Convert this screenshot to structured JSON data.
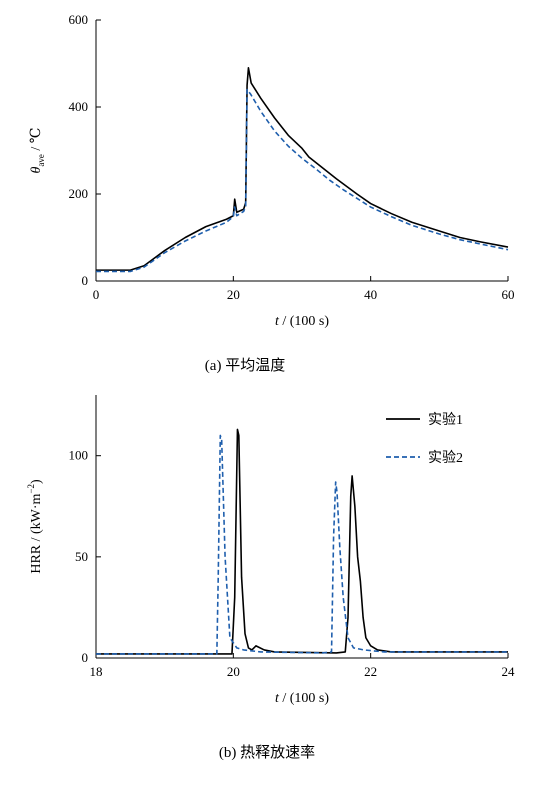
{
  "chart_data": [
    {
      "type": "line",
      "caption": "(a)  平均温度",
      "xlabel": {
        "var": "t",
        "rest": " / (100 s)"
      },
      "ylabel": {
        "var": "θ",
        "sub": "ave",
        "rest": " / ℃"
      },
      "xlim": [
        0,
        60
      ],
      "ylim": [
        0,
        600
      ],
      "xticks": [
        0,
        20,
        40,
        60
      ],
      "yticks": [
        0,
        200,
        400,
        600
      ],
      "grid": false,
      "series": [
        {
          "style": "solid",
          "color": "#000000",
          "points": [
            [
              0,
              25
            ],
            [
              5,
              25
            ],
            [
              7,
              35
            ],
            [
              10,
              70
            ],
            [
              13,
              100
            ],
            [
              16,
              125
            ],
            [
              19,
              142
            ],
            [
              20,
              150
            ],
            [
              20.2,
              188
            ],
            [
              20.5,
              158
            ],
            [
              21.5,
              165
            ],
            [
              21.8,
              180
            ],
            [
              22,
              450
            ],
            [
              22.2,
              490
            ],
            [
              22.6,
              455
            ],
            [
              24,
              420
            ],
            [
              26,
              375
            ],
            [
              28,
              335
            ],
            [
              30,
              305
            ],
            [
              31,
              285
            ],
            [
              33,
              260
            ],
            [
              35,
              235
            ],
            [
              38,
              200
            ],
            [
              40,
              178
            ],
            [
              43,
              155
            ],
            [
              46,
              135
            ],
            [
              50,
              115
            ],
            [
              53,
              100
            ],
            [
              56,
              90
            ],
            [
              60,
              78
            ]
          ]
        },
        {
          "style": "dashed",
          "color": "#1f5fad",
          "points": [
            [
              0,
              22
            ],
            [
              5,
              22
            ],
            [
              7,
              32
            ],
            [
              10,
              65
            ],
            [
              13,
              92
            ],
            [
              16,
              115
            ],
            [
              19,
              135
            ],
            [
              20,
              148
            ],
            [
              20.2,
              170
            ],
            [
              20.5,
              150
            ],
            [
              21.5,
              160
            ],
            [
              21.8,
              172
            ],
            [
              22,
              440
            ],
            [
              22.5,
              430
            ],
            [
              24,
              390
            ],
            [
              26,
              345
            ],
            [
              28,
              310
            ],
            [
              30,
              282
            ],
            [
              32,
              258
            ],
            [
              34,
              232
            ],
            [
              36,
              210
            ],
            [
              38,
              190
            ],
            [
              40,
              170
            ],
            [
              43,
              148
            ],
            [
              46,
              128
            ],
            [
              50,
              108
            ],
            [
              53,
              95
            ],
            [
              56,
              85
            ],
            [
              60,
              72
            ]
          ]
        }
      ]
    },
    {
      "type": "line",
      "caption": "(b)  热释放速率",
      "xlabel": {
        "var": "t",
        "rest": " / (100 s)"
      },
      "ylabel": {
        "text": "HRR / (kW·m",
        "sup": "−2",
        "close": ")"
      },
      "xlim": [
        18,
        24
      ],
      "ylim": [
        0,
        130
      ],
      "xticks": [
        18,
        20,
        22,
        24
      ],
      "yticks": [
        0,
        50,
        100
      ],
      "grid": false,
      "legend": {
        "position": "top-right"
      },
      "series": [
        {
          "name": "实验1",
          "style": "solid",
          "color": "#000000",
          "points": [
            [
              18,
              2
            ],
            [
              19.98,
              2
            ],
            [
              20.02,
              30
            ],
            [
              20.06,
              113
            ],
            [
              20.08,
              110
            ],
            [
              20.12,
              40
            ],
            [
              20.17,
              12
            ],
            [
              20.22,
              5
            ],
            [
              20.27,
              4
            ],
            [
              20.33,
              6
            ],
            [
              20.45,
              4
            ],
            [
              20.6,
              3
            ],
            [
              21.5,
              2.5
            ],
            [
              21.63,
              3
            ],
            [
              21.67,
              20
            ],
            [
              21.71,
              80
            ],
            [
              21.73,
              90
            ],
            [
              21.77,
              75
            ],
            [
              21.81,
              50
            ],
            [
              21.85,
              38
            ],
            [
              21.89,
              20
            ],
            [
              21.93,
              10
            ],
            [
              22.0,
              6
            ],
            [
              22.1,
              4
            ],
            [
              22.3,
              3
            ],
            [
              24,
              3
            ]
          ]
        },
        {
          "name": "实验2",
          "style": "dashed",
          "color": "#1f5fad",
          "points": [
            [
              18,
              2
            ],
            [
              19.76,
              2
            ],
            [
              19.78,
              40
            ],
            [
              19.81,
              110
            ],
            [
              19.83,
              108
            ],
            [
              19.88,
              50
            ],
            [
              19.95,
              10
            ],
            [
              20.05,
              5
            ],
            [
              20.15,
              4
            ],
            [
              20.4,
              3
            ],
            [
              21.3,
              2.5
            ],
            [
              21.43,
              3
            ],
            [
              21.46,
              60
            ],
            [
              21.49,
              87
            ],
            [
              21.51,
              82
            ],
            [
              21.55,
              55
            ],
            [
              21.6,
              30
            ],
            [
              21.67,
              10
            ],
            [
              21.75,
              5
            ],
            [
              21.9,
              4
            ],
            [
              22.2,
              3
            ],
            [
              24,
              3
            ]
          ]
        }
      ]
    }
  ]
}
